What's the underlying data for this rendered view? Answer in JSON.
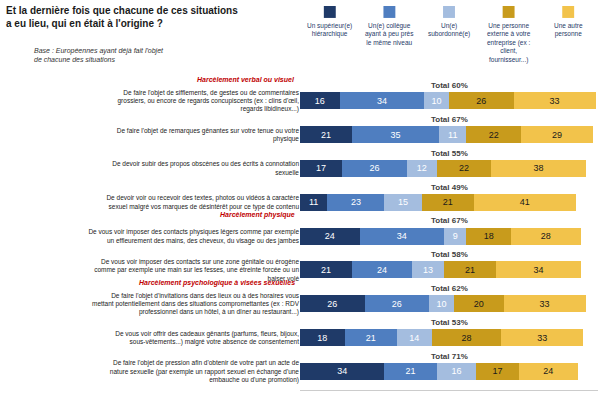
{
  "chart_data": {
    "type": "bar",
    "orientation": "horizontal",
    "stacked": true,
    "data_labels": true,
    "tick_labels": "y",
    "grid": false,
    "title": "Et la dernière fois que chacune de ces situations a eu lieu, qui en était à l'origine ?",
    "subtitle": "Base : Européennes ayant déjà fait l'objet de chacune des situations",
    "categories": [
      "De faire l'objet de sifflements, de gestes ou de commentaires grossiers, ou encore de regards concupiscents (ex : clins d'œil, regards libidineux...)",
      "De faire l'objet de remarques gênantes sur votre tenue ou votre physique",
      "De devoir subir des propos obscènes ou des écrits à connotation sexuelle",
      "De devoir voir ou recevoir des textes, photos ou vidéos à caractère sexuel malgré vos marques de désintérêt pour ce type de contenu",
      "De vous voir imposer des contacts physiques légers comme par exemple un effleurement des mains, des cheveux, du visage ou des jambes",
      "De vous voir imposer des contacts sur une zone génitale ou érogène comme par exemple une main sur les fesses, une étreinte forcée ou un baiser volé",
      "De faire l'objet d'invitations dans des lieux ou à des horaires vous mettant potentiellement dans des situations compromettantes (ex : RDV professionnel dans un hôtel, à un dîner au restaurant...)",
      "De vous voir offrir des cadeaux gênants (parfums, fleurs, bijoux, sous-vêtements...) malgré votre absence de consentement",
      "De faire l'objet de pression afin d'obtenir de votre part un acte de nature sexuelle (par exemple un rapport sexuel en échange d'une embauche ou d'une promotion)"
    ],
    "groups": [
      {
        "title": "Harcèlement verbal ou visuel",
        "first": 0
      },
      {
        "title": "Harcèlement physique",
        "first": 4
      },
      {
        "title": "Harcèlement psychologique à visées sexuelles",
        "first": 6
      }
    ],
    "total_labels": [
      "Total 60%",
      "Total 67%",
      "Total 55%",
      "Total 49%",
      "Total 67%",
      "Total 58%",
      "Total 62%",
      "Total 53%",
      "Total 71%"
    ],
    "series": [
      {
        "name": "Un supérieur(e) hiérarchique",
        "color": "#1f3a68",
        "values": [
          16,
          21,
          17,
          11,
          24,
          21,
          26,
          18,
          34
        ]
      },
      {
        "name": "Un(e) collègue ayant à peu près le même niveau",
        "color": "#4f7ec0",
        "values": [
          34,
          35,
          26,
          23,
          34,
          24,
          26,
          21,
          21
        ]
      },
      {
        "name": "Un(e) subordonné(e)",
        "color": "#a4bddf",
        "values": [
          10,
          11,
          12,
          15,
          9,
          13,
          10,
          14,
          16
        ]
      },
      {
        "name": "Une personne externe à votre entreprise (ex : client, fournisseur...)",
        "color": "#c89b1c",
        "values": [
          26,
          22,
          22,
          21,
          18,
          21,
          20,
          28,
          17
        ]
      },
      {
        "name": "Une autre personne",
        "color": "#f2c34b",
        "values": [
          33,
          29,
          38,
          41,
          28,
          34,
          33,
          33,
          24
        ]
      }
    ],
    "xlim": [
      0,
      120
    ]
  }
}
